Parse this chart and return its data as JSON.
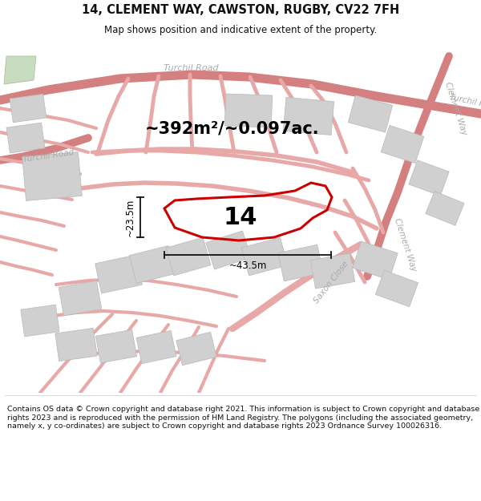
{
  "title": "14, CLEMENT WAY, CAWSTON, RUGBY, CV22 7FH",
  "subtitle": "Map shows position and indicative extent of the property.",
  "footer": "Contains OS data © Crown copyright and database right 2021. This information is subject to Crown copyright and database rights 2023 and is reproduced with the permission of HM Land Registry. The polygons (including the associated geometry, namely x, y co-ordinates) are subject to Crown copyright and database rights 2023 Ordnance Survey 100026316.",
  "area_label": "~392m²/~0.097ac.",
  "plot_number": "14",
  "dim_width": "~43.5m",
  "dim_height": "~23.5m",
  "map_bg": "#f7f6f4",
  "road_color": "#e8a8a8",
  "road_color2": "#d48080",
  "building_fill": "#d0d0d0",
  "building_edge": "#b8b8b8",
  "plot_edge": "#cc0000",
  "dim_line_color": "#111111",
  "title_color": "#111111",
  "text_color": "#111111",
  "road_label_color": "#aaaaaa",
  "green_patch": "#c8ddc0"
}
